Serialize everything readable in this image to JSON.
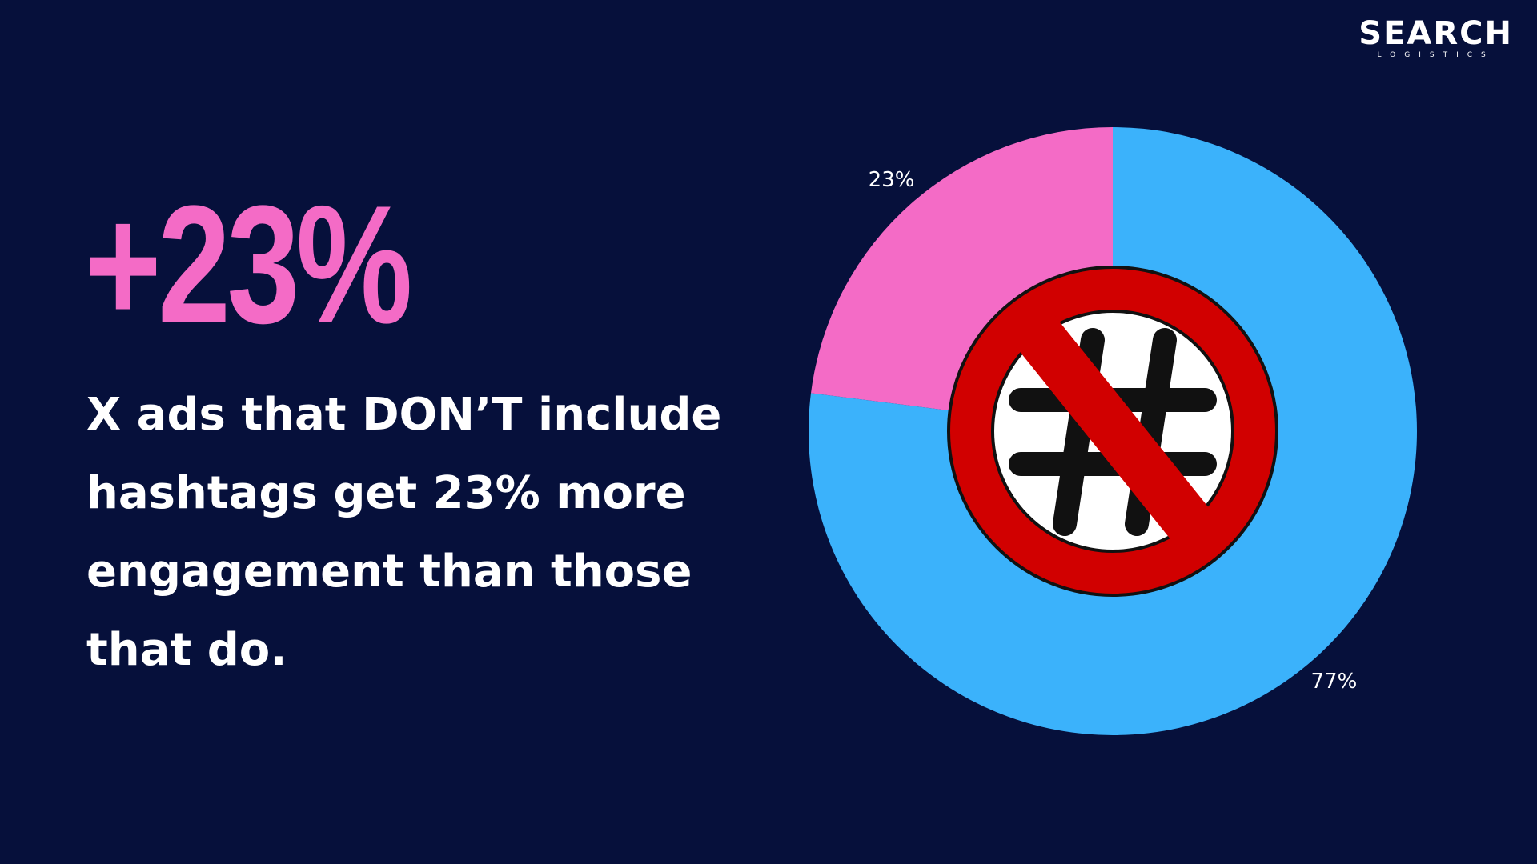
{
  "brand": {
    "name": "SEARCH",
    "tagline": "LOGISTICS"
  },
  "headline": "+23%",
  "body": "X ads that DON’T include hashtags get 23% more engagement than those that do.",
  "chart_data": {
    "type": "donut",
    "values": [
      23,
      77
    ],
    "value_labels": [
      "23%",
      "77%"
    ],
    "colors": [
      "#f46bc6",
      "#3bb2fb"
    ]
  }
}
